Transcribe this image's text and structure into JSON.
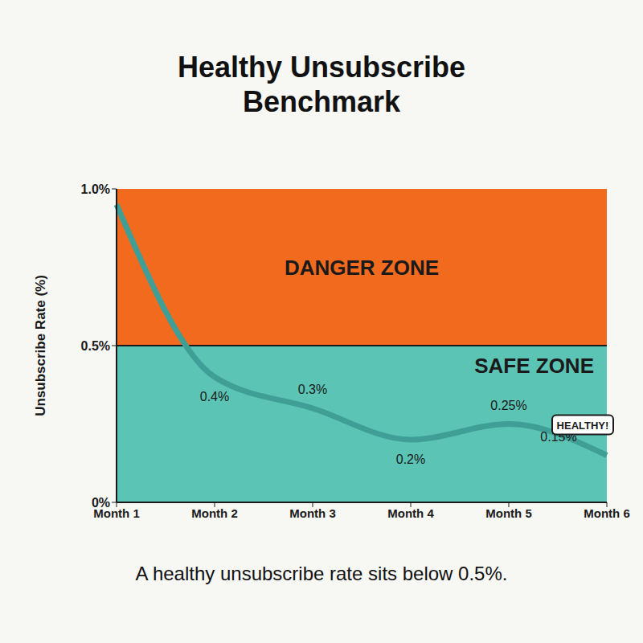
{
  "chart_data": {
    "type": "line",
    "title": "Healthy Unsubscribe Benchmark",
    "y_label": "Unsubscribe Rate (%)",
    "caption": "A healthy unsubscribe rate sits below 0.5%.",
    "categories": [
      "Month 1",
      "Month 2",
      "Month 3",
      "Month 4",
      "Month 5",
      "Month 6"
    ],
    "values": [
      0.95,
      0.4,
      0.3,
      0.2,
      0.25,
      0.15
    ],
    "value_labels": [
      null,
      "0.4%",
      "0.3%",
      "0.2%",
      "0.25%",
      "0.15%"
    ],
    "color": "#3f9f96",
    "ylim": [
      0,
      1
    ],
    "yticks": [
      {
        "value": 0,
        "label": "0%"
      },
      {
        "value": 0.5,
        "label": "0.5%"
      },
      {
        "value": 1,
        "label": "1.0%"
      }
    ],
    "grid": false,
    "threshold": 0.5,
    "zones": [
      {
        "label": "DANGER ZONE",
        "from": 0.5,
        "to": 1,
        "color": "#f26a1e"
      },
      {
        "label": "SAFE ZONE",
        "from": 0,
        "to": 0.5,
        "color": "#5bc4b4"
      }
    ],
    "end_label": "HEALTHY!"
  }
}
